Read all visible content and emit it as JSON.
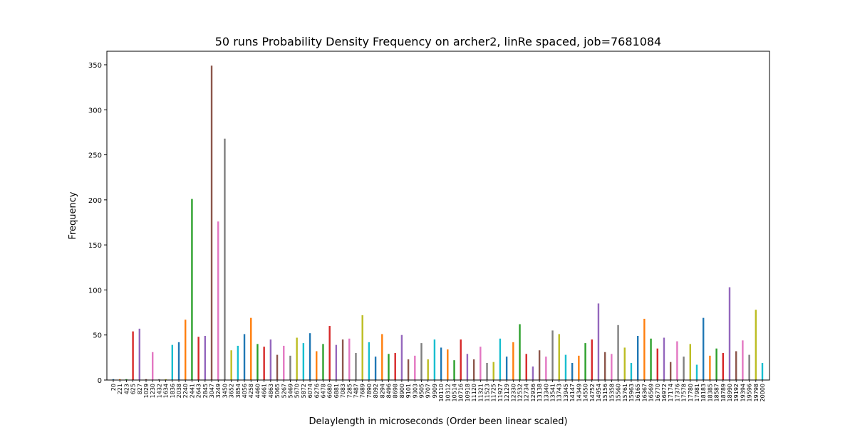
{
  "chart_data": {
    "type": "bar",
    "title": "50 runs Probability Density Frequency on archer2, linRe spaced, job=7681084",
    "xlabel": "Delaylength in microseconds (Order been linear scaled)",
    "ylabel": "Frequency",
    "ylim": [
      0,
      365
    ],
    "yticks": [
      0,
      50,
      100,
      150,
      200,
      250,
      300,
      350
    ],
    "categories": [
      "20",
      "221",
      "423",
      "625",
      "827",
      "1029",
      "1230",
      "1432",
      "1634",
      "1836",
      "2038",
      "2240",
      "2441",
      "2643",
      "2845",
      "3047",
      "3249",
      "3450",
      "3652",
      "3854",
      "4056",
      "4258",
      "4460",
      "4661",
      "4863",
      "5065",
      "5267",
      "5469",
      "5670",
      "5872",
      "6074",
      "6276",
      "6478",
      "6680",
      "6881",
      "7083",
      "7285",
      "7487",
      "7689",
      "7890",
      "8092",
      "8294",
      "8496",
      "8698",
      "8900",
      "9101",
      "9303",
      "9505",
      "9707",
      "9909",
      "10110",
      "10312",
      "10514",
      "10716",
      "10918",
      "11120",
      "11321",
      "11523",
      "11725",
      "11927",
      "12129",
      "12330",
      "12532",
      "12734",
      "12936",
      "13138",
      "13340",
      "13541",
      "13743",
      "13945",
      "14147",
      "14349",
      "14550",
      "14752",
      "14954",
      "15156",
      "15358",
      "15560",
      "15761",
      "15963",
      "16165",
      "16367",
      "16569",
      "16770",
      "16972",
      "17174",
      "17376",
      "17578",
      "17780",
      "17981",
      "18183",
      "18385",
      "18587",
      "18789",
      "18990",
      "19192",
      "19394",
      "19596",
      "19798",
      "20000"
    ],
    "values": [
      1,
      1,
      1,
      54,
      57,
      1,
      31,
      1,
      1,
      39,
      42,
      67,
      201,
      48,
      49,
      349,
      176,
      268,
      33,
      38,
      51,
      69,
      40,
      37,
      45,
      28,
      38,
      27,
      47,
      41,
      52,
      32,
      40,
      60,
      39,
      45,
      46,
      30,
      72,
      42,
      26,
      51,
      29,
      30,
      50,
      23,
      27,
      41,
      23,
      45,
      36,
      34,
      22,
      45,
      29,
      23,
      37,
      19,
      20,
      46,
      26,
      42,
      62,
      29,
      15,
      33,
      26,
      55,
      51,
      28,
      19,
      27,
      41,
      45,
      85,
      31,
      29,
      61,
      36,
      19,
      49,
      68,
      46,
      35,
      47,
      20,
      43,
      26,
      40,
      17,
      69,
      27,
      35,
      30,
      103,
      32,
      44,
      28,
      78,
      19
    ],
    "colors": [
      "#1f77b4",
      "#ff7f0e",
      "#2ca02c",
      "#d62728",
      "#9467bd",
      "#8c564b",
      "#e377c2",
      "#7f7f7f",
      "#bcbd22",
      "#17becf"
    ],
    "grid": false,
    "legend": "none"
  }
}
